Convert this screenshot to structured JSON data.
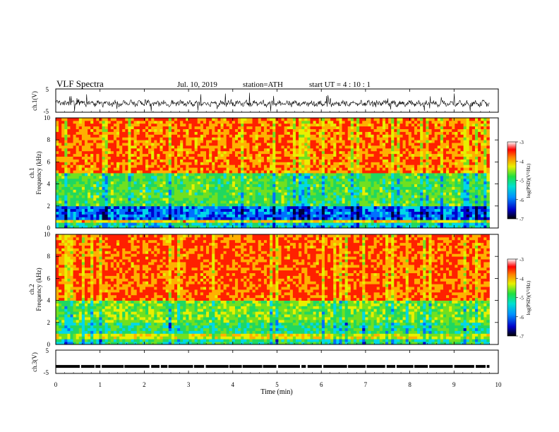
{
  "header": {
    "title": "VLF  Spectra",
    "date": "Jul.  10,  2019",
    "station": "station=ATH",
    "start_ut": "start  UT  =    4  : 10 : 1"
  },
  "chart_data": [
    {
      "type": "line",
      "panel": "ch1-waveform",
      "ylabel": "ch.1(V)",
      "ylim": [
        -5,
        5
      ],
      "yticks": [
        "5",
        "-5"
      ],
      "xlim": [
        0,
        10
      ],
      "trace_color": "#000000",
      "trace_span_min": [
        0,
        9.8
      ]
    },
    {
      "type": "heatmap",
      "panel": "ch1-spectrogram",
      "ylabel": "ch.1\nFrequency (kHz)",
      "ylim": [
        0,
        10
      ],
      "yticks": [
        "0",
        "2",
        "4",
        "6",
        "8",
        "10"
      ],
      "xlim": [
        0,
        10
      ],
      "data_span_min": [
        0,
        9.8
      ],
      "bands": [
        {
          "f_from": 0.0,
          "f_to": 0.4,
          "level": -5.5
        },
        {
          "f_from": 0.4,
          "f_to": 0.8,
          "level": -4.3
        },
        {
          "f_from": 0.8,
          "f_to": 2.0,
          "level": -6.0
        },
        {
          "f_from": 2.0,
          "f_to": 5.0,
          "level": -5.0
        },
        {
          "f_from": 5.0,
          "f_to": 10.0,
          "level": -3.8
        }
      ],
      "colorbar": {
        "label": "log(PSD)(V²/Hz)",
        "range": [
          -7,
          -3
        ],
        "ticks": [
          "-3",
          "-4",
          "-5",
          "-6",
          "-7"
        ]
      }
    },
    {
      "type": "heatmap",
      "panel": "ch2-spectrogram",
      "ylabel": "ch.2\nFrequency (kHz)",
      "ylim": [
        0,
        10
      ],
      "yticks": [
        "0",
        "2",
        "4",
        "6",
        "8",
        "10"
      ],
      "xlim": [
        0,
        10
      ],
      "data_span_min": [
        0,
        9.8
      ],
      "bands": [
        {
          "f_from": 0.0,
          "f_to": 0.5,
          "level": -5.2
        },
        {
          "f_from": 0.5,
          "f_to": 1.0,
          "level": -4.4
        },
        {
          "f_from": 1.0,
          "f_to": 2.0,
          "level": -5.2
        },
        {
          "f_from": 2.0,
          "f_to": 4.0,
          "level": -4.8
        },
        {
          "f_from": 4.0,
          "f_to": 10.0,
          "level": -3.7
        }
      ],
      "colorbar": {
        "label": "log(PSD)(V²/Hz)",
        "range": [
          -7,
          -3
        ],
        "ticks": [
          "-3",
          "-4",
          "-5",
          "-6",
          "-7"
        ]
      }
    },
    {
      "type": "line",
      "panel": "ch3-waveform",
      "ylabel": "ch.3(V)",
      "ylim": [
        -5,
        5
      ],
      "yticks": [
        "5",
        "-5"
      ],
      "xlim": [
        0,
        10
      ],
      "trace_value": -2,
      "trace_span_min": [
        0,
        9.8
      ]
    }
  ],
  "xaxis": {
    "label": "Time  (min)",
    "ticks": [
      "0",
      "1",
      "2",
      "3",
      "4",
      "5",
      "6",
      "7",
      "8",
      "9",
      "10"
    ]
  }
}
